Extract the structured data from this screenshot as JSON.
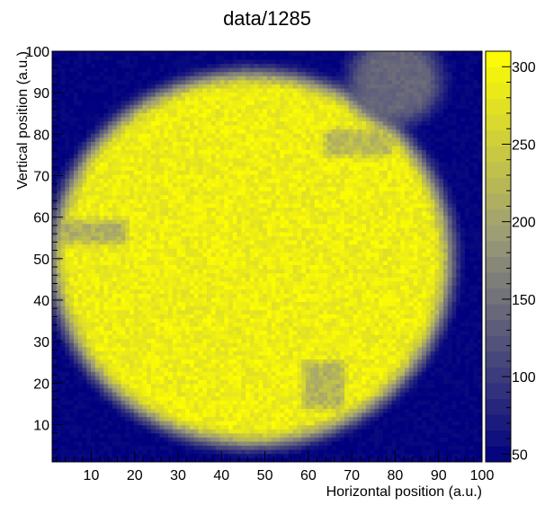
{
  "chart_data": {
    "type": "heatmap",
    "title": "data/1285",
    "xlabel": "Horizontal position (a.u.)",
    "ylabel": "Vertical position (a.u.)",
    "xlim": [
      1,
      100
    ],
    "ylim": [
      1,
      100
    ],
    "x_ticks": [
      10,
      20,
      30,
      40,
      50,
      60,
      70,
      80,
      90,
      100
    ],
    "y_ticks": [
      10,
      20,
      30,
      40,
      50,
      60,
      70,
      80,
      90,
      100
    ],
    "x_tick_labels": [
      "10",
      "20",
      "30",
      "40",
      "50",
      "60",
      "70",
      "80",
      "90",
      "100"
    ],
    "y_tick_labels": [
      "10",
      "20",
      "30",
      "40",
      "50",
      "60",
      "70",
      "80",
      "90",
      "100"
    ],
    "bins": {
      "nx": 100,
      "ny": 100
    },
    "z_range": [
      45,
      310
    ],
    "colorbar_ticks": [
      50,
      100,
      150,
      200,
      250,
      300
    ],
    "colorbar_tick_labels": [
      "50",
      "100",
      "150",
      "200",
      "250",
      "300"
    ],
    "colors": {
      "low": "#00007f",
      "mid": "#9c9c78",
      "high": "#ffff00"
    },
    "grid": false,
    "features": {
      "disk_center": [
        47,
        50
      ],
      "disk_radius": [
        47,
        46
      ],
      "bright_level": 290,
      "outside_level": 48,
      "dim_lobe_top_right": {
        "center": [
          80,
          93
        ],
        "radius": 11,
        "level": 140
      },
      "dim_streak_left": {
        "x": [
          1,
          17
        ],
        "y": [
          55,
          58
        ],
        "level": 215
      },
      "dim_streak_lower": {
        "x": [
          60,
          67
        ],
        "y": [
          15,
          24
        ],
        "level": 220
      },
      "dim_line_upper": {
        "x": [
          65,
          78
        ],
        "y": [
          76,
          80
        ],
        "level": 225
      }
    }
  }
}
